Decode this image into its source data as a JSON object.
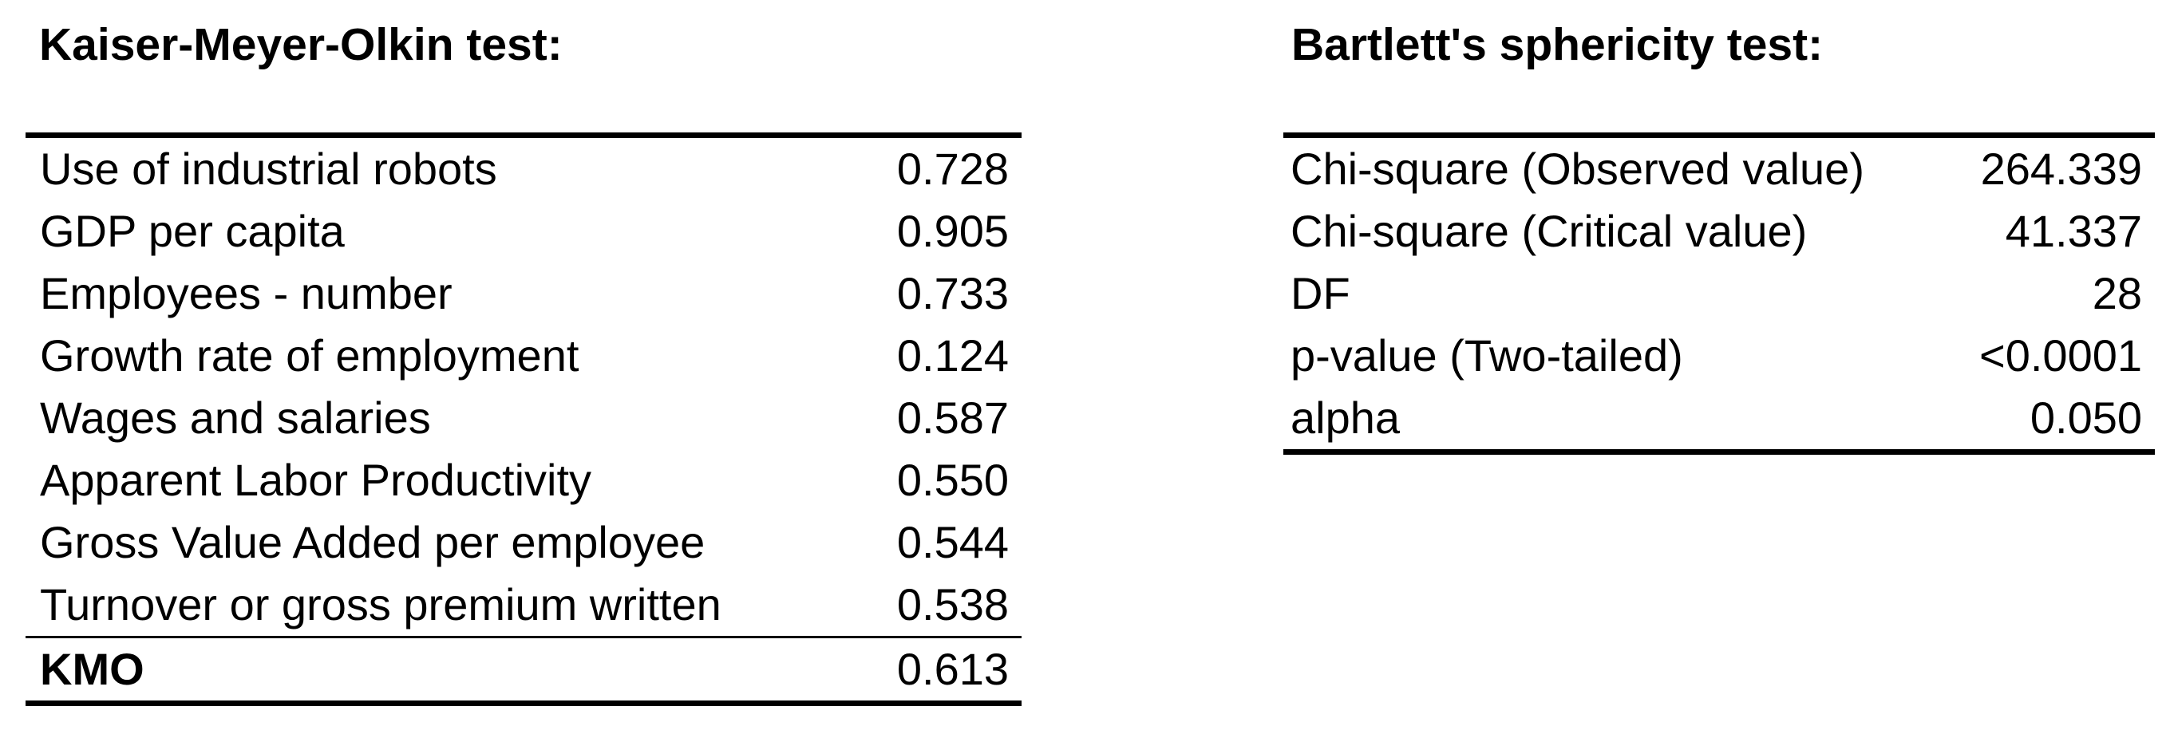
{
  "page": {
    "background": "#ffffff",
    "text_color": "#000000",
    "rule_color": "#000000"
  },
  "kmo_table": {
    "title": "Kaiser-Meyer-Olkin test:",
    "rows": [
      {
        "label": "Use of industrial robots",
        "value": "0.728"
      },
      {
        "label": "GDP per capita",
        "value": "0.905"
      },
      {
        "label": "Employees - number",
        "value": "0.733"
      },
      {
        "label": "Growth rate of employment",
        "value": "0.124"
      },
      {
        "label": "Wages and salaries",
        "value": "0.587"
      },
      {
        "label": "Apparent Labor Productivity",
        "value": "0.550"
      },
      {
        "label": "Gross Value Added per employee",
        "value": "0.544"
      },
      {
        "label": "Turnover or gross premium written",
        "value": "0.538"
      }
    ],
    "summary_row": {
      "label": "KMO",
      "value": "0.613"
    }
  },
  "bartlett_table": {
    "title": "Bartlett's sphericity test:",
    "rows": [
      {
        "label": "Chi-square (Observed value)",
        "value": "264.339"
      },
      {
        "label": "Chi-square (Critical value)",
        "value": "41.337"
      },
      {
        "label": "DF",
        "value": "28"
      },
      {
        "label": "p-value (Two-tailed)",
        "value": "<0.0001"
      },
      {
        "label": "alpha",
        "value": "0.050"
      }
    ]
  }
}
